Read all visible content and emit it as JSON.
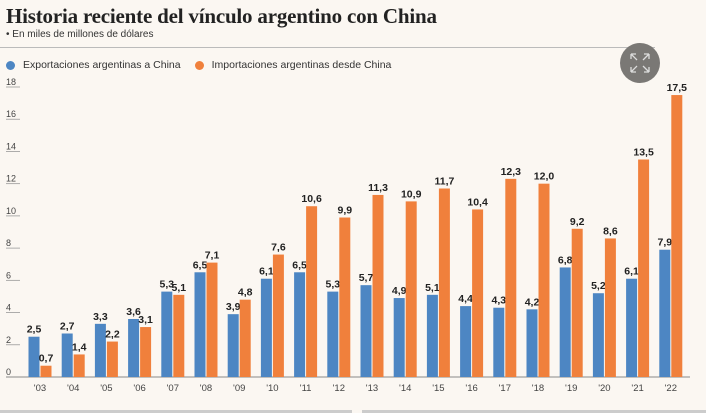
{
  "title": "Historia reciente del vínculo argentino con China",
  "subtitle": "• En miles de millones de dólares",
  "colors": {
    "exports": "#4d86c3",
    "imports": "#f0803c",
    "background": "#fbf7f2"
  },
  "expand_icon": "expand-arrows-icon",
  "chart_data": {
    "type": "bar",
    "title": "Historia reciente del vínculo argentino con China",
    "subtitle": "En miles de millones de dólares",
    "categories": [
      "'03",
      "'04",
      "'05",
      "'06",
      "'07",
      "'08",
      "'09",
      "'10",
      "'11",
      "'12",
      "'13",
      "'14",
      "'15",
      "'16",
      "'17",
      "'18",
      "'19",
      "'20",
      "'21",
      "'22"
    ],
    "series": [
      {
        "name": "Exportaciones argentinas a China",
        "color": "#4d86c3",
        "values": [
          2.5,
          2.7,
          3.3,
          3.6,
          5.3,
          6.5,
          3.9,
          6.1,
          6.5,
          5.3,
          5.7,
          4.9,
          5.1,
          4.4,
          4.3,
          4.2,
          6.8,
          5.2,
          6.1,
          7.9
        ]
      },
      {
        "name": "Importaciones argentinas desde China",
        "color": "#f0803c",
        "values": [
          0.7,
          1.4,
          2.2,
          3.1,
          5.1,
          7.1,
          4.8,
          7.6,
          10.6,
          9.9,
          11.3,
          10.9,
          11.7,
          10.4,
          12.3,
          12.0,
          9.2,
          8.6,
          13.5,
          17.5
        ]
      }
    ],
    "yticks": [
      0,
      2,
      4,
      6,
      8,
      10,
      12,
      14,
      16,
      18
    ],
    "ylim": [
      0,
      18
    ],
    "legend": "top-left",
    "grid": false,
    "decimal_separator": ","
  }
}
